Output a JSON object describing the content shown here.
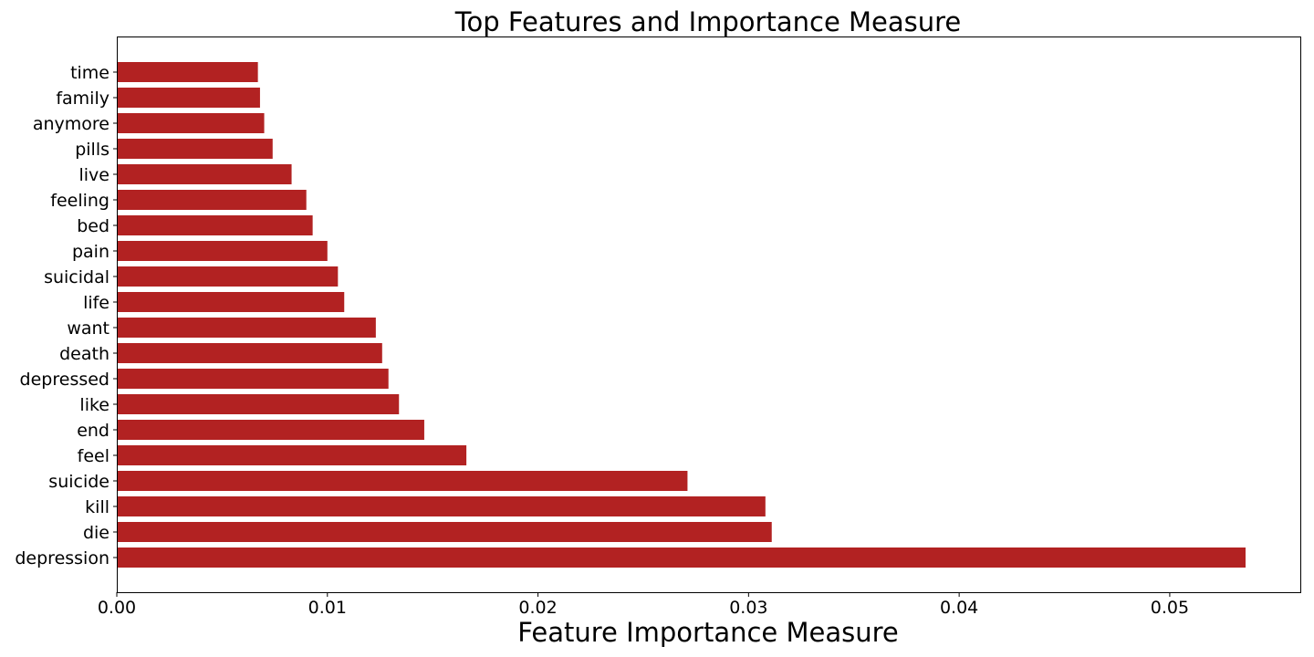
{
  "chart_data": {
    "type": "bar",
    "orientation": "horizontal",
    "title": "Top Features and Importance Measure",
    "xlabel": "Feature Importance Measure",
    "ylabel": "",
    "bar_color": "#b22222",
    "xlim": [
      0,
      0.0562
    ],
    "xticks": [
      "0.00",
      "0.01",
      "0.02",
      "0.03",
      "0.04",
      "0.05"
    ],
    "xtick_values": [
      0,
      0.01,
      0.02,
      0.03,
      0.04,
      0.05
    ],
    "grid": false,
    "legend": "none",
    "categories": [
      "depression",
      "die",
      "kill",
      "suicide",
      "feel",
      "end",
      "like",
      "depressed",
      "death",
      "want",
      "life",
      "suicidal",
      "pain",
      "bed",
      "feeling",
      "live",
      "pills",
      "anymore",
      "family",
      "time"
    ],
    "values": [
      0.0536,
      0.0311,
      0.0308,
      0.0271,
      0.0166,
      0.0146,
      0.0134,
      0.0129,
      0.0126,
      0.0123,
      0.0108,
      0.0105,
      0.01,
      0.0093,
      0.009,
      0.0083,
      0.0074,
      0.007,
      0.0068,
      0.0067
    ]
  }
}
